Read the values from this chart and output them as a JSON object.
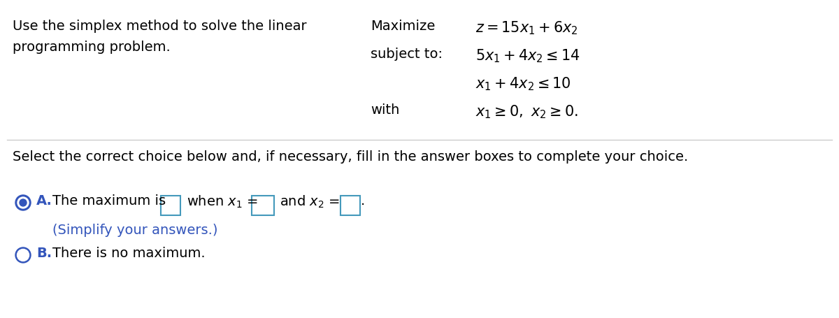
{
  "bg_color": "#ffffff",
  "text_color": "#000000",
  "blue_color": "#3355bb",
  "box_border_color": "#4499bb",
  "divider_color": "#cccccc",
  "top_left_line1": "Use the simplex method to solve the linear",
  "top_left_line2": "programming problem.",
  "select_text": "Select the correct choice below and, if necessary, fill in the answer boxes to complete your choice.",
  "choice_A_note": "(Simplify your answers.)",
  "choice_B_text": "There is no maximum.",
  "font_size": 14
}
